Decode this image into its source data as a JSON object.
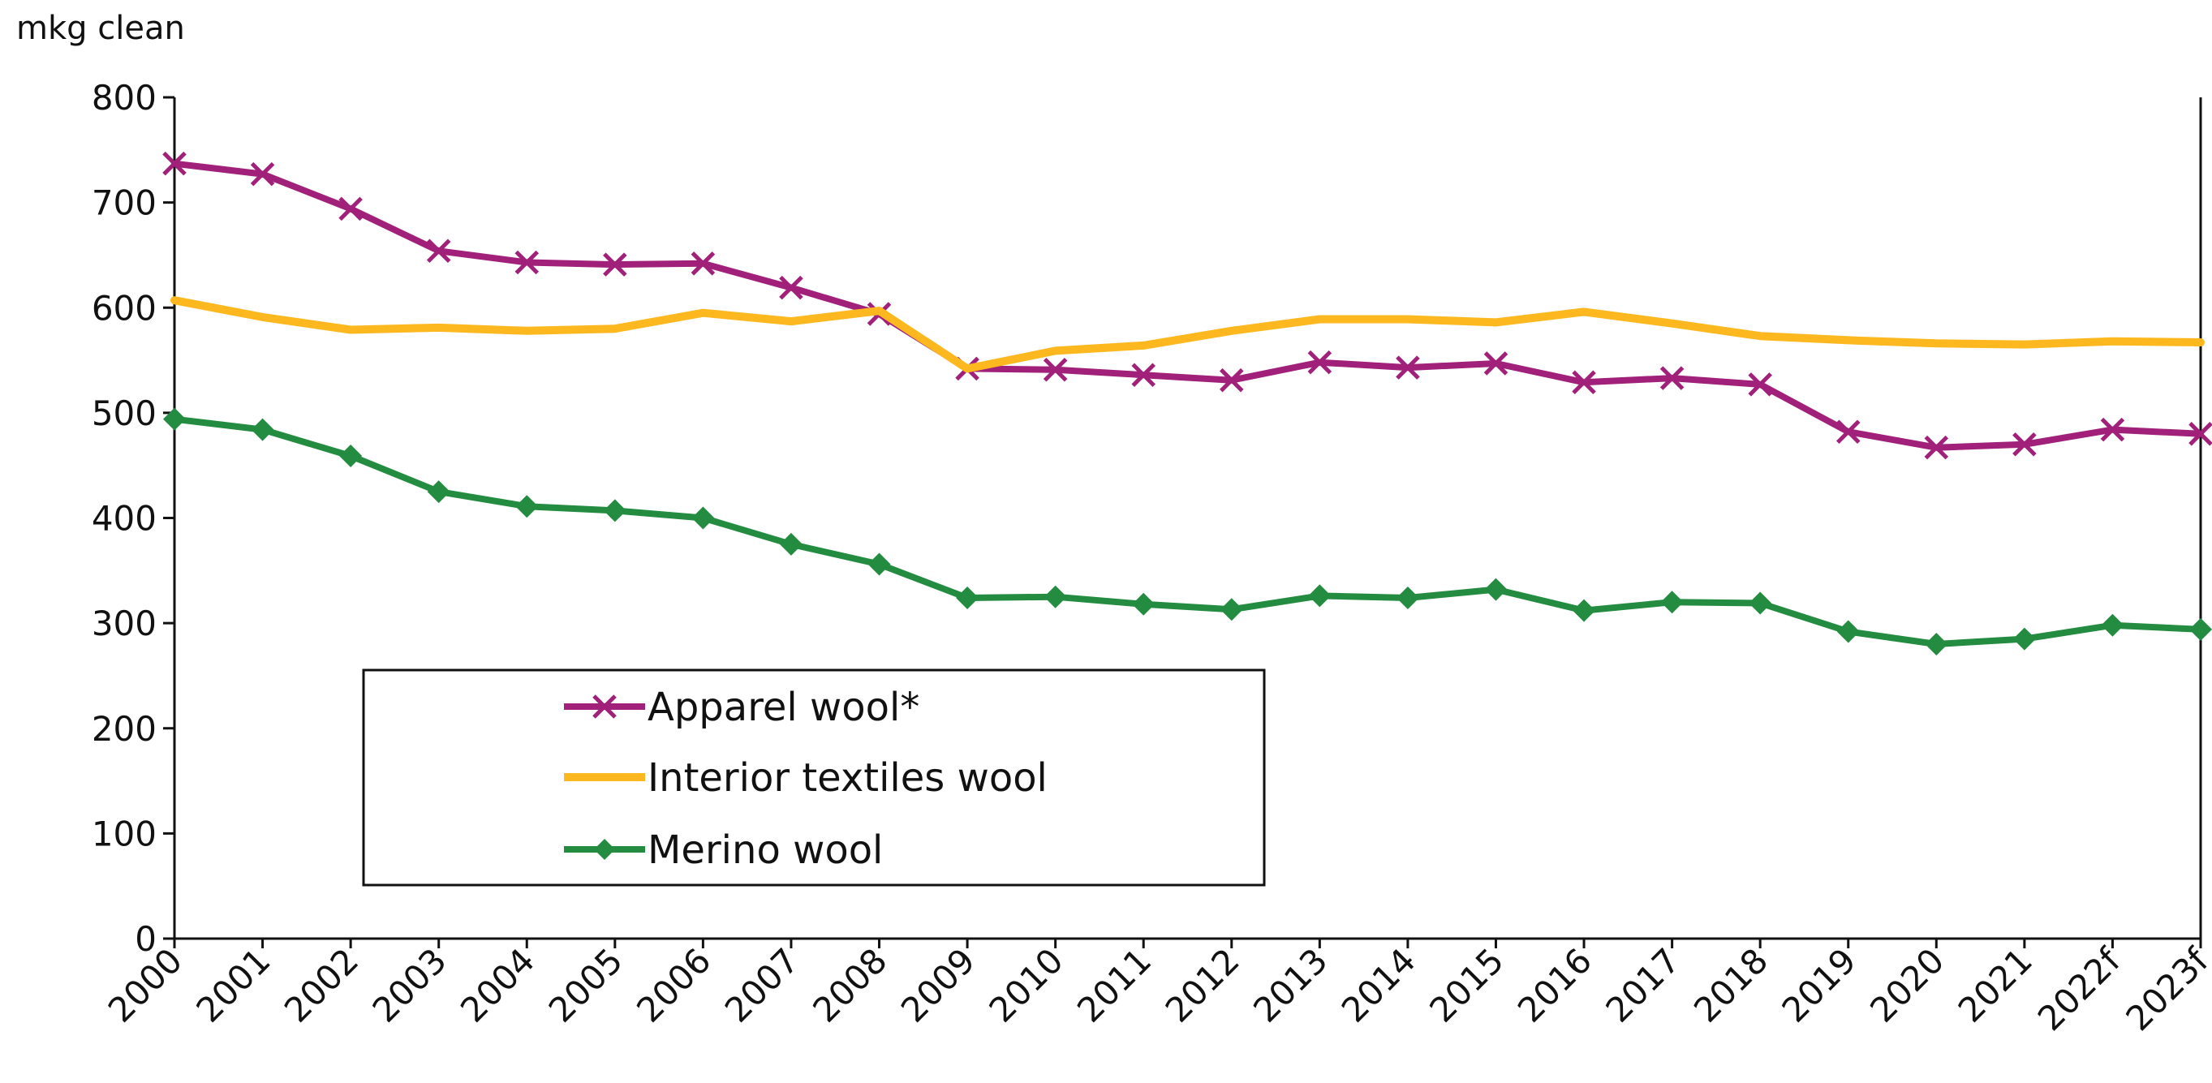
{
  "chart_data": {
    "type": "line",
    "ylabel": "mkg clean",
    "ylim": [
      0,
      800
    ],
    "yticks": [
      0,
      100,
      200,
      300,
      400,
      500,
      600,
      700,
      800
    ],
    "categories": [
      "2000",
      "2001",
      "2002",
      "2003",
      "2004",
      "2005",
      "2006",
      "2007",
      "2008",
      "2009",
      "2010",
      "2011",
      "2012",
      "2013",
      "2014",
      "2015",
      "2016",
      "2017",
      "2018",
      "2019",
      "2020",
      "2021",
      "2022f",
      "2023f"
    ],
    "series": [
      {
        "name": "Apparel wool*",
        "color": "#a0207a",
        "marker": "x",
        "values": [
          737,
          727,
          694,
          654,
          643,
          641,
          642,
          619,
          594,
          542,
          541,
          536,
          531,
          548,
          543,
          547,
          529,
          533,
          527,
          482,
          467,
          470,
          484,
          480
        ]
      },
      {
        "name": "Interior textiles wool",
        "color": "#fcb81e",
        "marker": "none",
        "values": [
          607,
          591,
          579,
          581,
          578,
          580,
          595,
          587,
          597,
          542,
          559,
          564,
          578,
          589,
          589,
          586,
          596,
          585,
          573,
          569,
          566,
          565,
          568,
          567
        ]
      },
      {
        "name": "Merino wool",
        "color": "#238c40",
        "marker": "diamond",
        "values": [
          494,
          484,
          459,
          425,
          411,
          407,
          400,
          375,
          356,
          324,
          325,
          318,
          313,
          326,
          324,
          332,
          312,
          320,
          319,
          292,
          280,
          285,
          298,
          294
        ]
      }
    ],
    "legend": {
      "position": "bottom-left"
    },
    "grid": false
  }
}
